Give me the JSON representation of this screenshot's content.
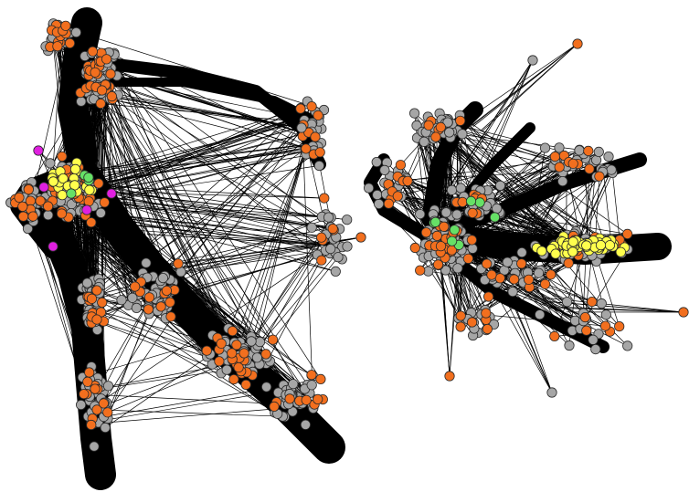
{
  "diagram": {
    "type": "network-graph",
    "background": "#ffffff",
    "edge_color": "#000000",
    "node_outline": "#2a2a2a",
    "node_colors": {
      "gray": "#a6a6a6",
      "orange": "#f26f1e",
      "yellow": "#ffff4d",
      "green": "#66e066",
      "magenta": "#e020e0"
    },
    "components": [
      {
        "name": "left-network",
        "seed": 11,
        "counts": {
          "gray": 420,
          "orange": 170,
          "yellow": 22,
          "green": 4,
          "magenta": 5
        }
      },
      {
        "name": "right-network",
        "seed": 29,
        "counts": {
          "gray": 300,
          "orange": 95,
          "yellow": 55,
          "green": 8,
          "magenta": 0
        }
      }
    ]
  }
}
